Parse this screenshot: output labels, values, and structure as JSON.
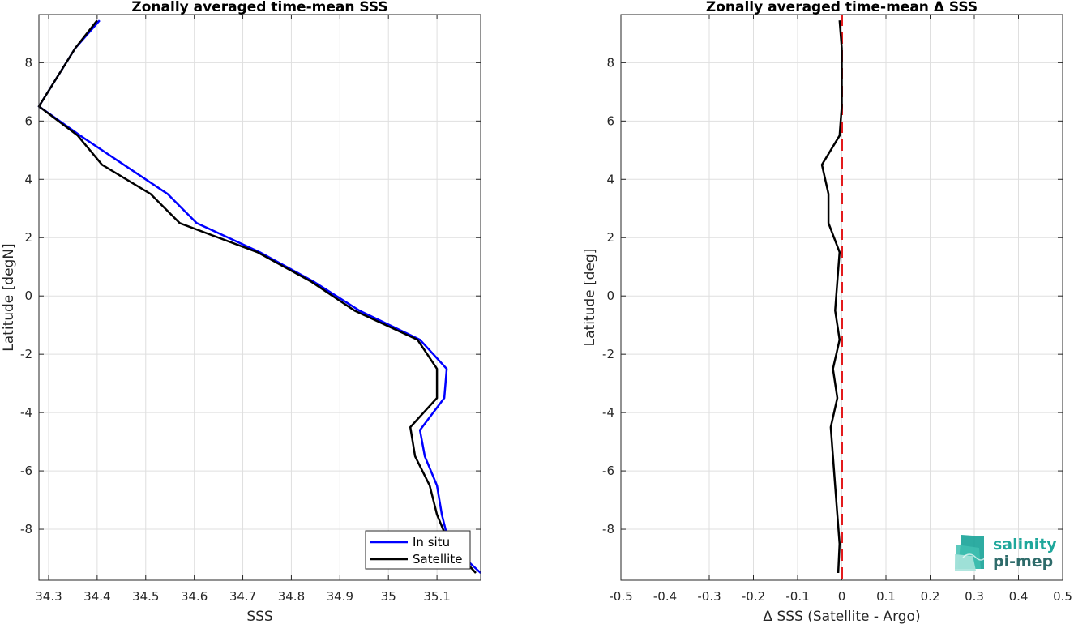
{
  "chart_data": [
    {
      "type": "line",
      "title": "Zonally averaged time-mean SSS",
      "xlabel": "SSS",
      "ylabel": "Latitude [degN]",
      "xlim": [
        34.28,
        35.19
      ],
      "ylim": [
        -9.75,
        9.65
      ],
      "xticks": [
        "34.3",
        "34.4",
        "34.5",
        "34.6",
        "34.7",
        "34.8",
        "34.9",
        "35",
        "35.1"
      ],
      "yticks": [
        "8",
        "6",
        "4",
        "2",
        "0",
        "-2",
        "-4",
        "-6",
        "-8"
      ],
      "grid": true,
      "legend": {
        "placement": "bottom-right",
        "entries": [
          "In situ",
          "Satellite"
        ]
      },
      "series": [
        {
          "name": "In situ",
          "color": "#0000ff",
          "points": [
            [
              34.405,
              9.45
            ],
            [
              34.355,
              8.5
            ],
            [
              34.28,
              6.5
            ],
            [
              34.365,
              5.5
            ],
            [
              34.455,
              4.5
            ],
            [
              34.545,
              3.5
            ],
            [
              34.605,
              2.5
            ],
            [
              34.735,
              1.5
            ],
            [
              34.845,
              0.5
            ],
            [
              34.94,
              -0.5
            ],
            [
              35.065,
              -1.5
            ],
            [
              35.12,
              -2.5
            ],
            [
              35.115,
              -3.5
            ],
            [
              35.065,
              -4.6
            ],
            [
              35.075,
              -5.5
            ],
            [
              35.1,
              -6.5
            ],
            [
              35.11,
              -7.5
            ],
            [
              35.125,
              -8.5
            ],
            [
              35.19,
              -9.5
            ]
          ]
        },
        {
          "name": "Satellite",
          "color": "#000000",
          "points": [
            [
              34.4,
              9.45
            ],
            [
              34.355,
              8.5
            ],
            [
              34.28,
              6.5
            ],
            [
              34.36,
              5.5
            ],
            [
              34.41,
              4.5
            ],
            [
              34.51,
              3.5
            ],
            [
              34.57,
              2.5
            ],
            [
              34.73,
              1.5
            ],
            [
              34.84,
              0.5
            ],
            [
              34.93,
              -0.5
            ],
            [
              35.06,
              -1.5
            ],
            [
              35.1,
              -2.5
            ],
            [
              35.1,
              -3.5
            ],
            [
              35.045,
              -4.5
            ],
            [
              35.055,
              -5.5
            ],
            [
              35.085,
              -6.5
            ],
            [
              35.1,
              -7.5
            ],
            [
              35.125,
              -8.5
            ],
            [
              35.18,
              -9.5
            ]
          ]
        }
      ]
    },
    {
      "type": "line",
      "title": "Zonally averaged time-mean Δ SSS",
      "xlabel": "Δ SSS (Satellite - Argo)",
      "ylabel": "Latitude [deg]",
      "xlim": [
        -0.5,
        0.5
      ],
      "ylim": [
        -9.75,
        9.65
      ],
      "xticks": [
        "-0.5",
        "-0.4",
        "-0.3",
        "-0.2",
        "-0.1",
        "0",
        "0.1",
        "0.2",
        "0.3",
        "0.4",
        "0.5"
      ],
      "yticks": [
        "8",
        "6",
        "4",
        "2",
        "0",
        "-2",
        "-4",
        "-6",
        "-8"
      ],
      "grid": true,
      "reference_line": {
        "x": 0,
        "color": "#e31a1c",
        "style": "dashed"
      },
      "series": [
        {
          "color": "#000000",
          "points": [
            [
              -0.005,
              9.45
            ],
            [
              0.0,
              8.5
            ],
            [
              0.0,
              7.5
            ],
            [
              0.0,
              6.5
            ],
            [
              -0.005,
              5.5
            ],
            [
              -0.045,
              4.5
            ],
            [
              -0.03,
              3.5
            ],
            [
              -0.03,
              2.5
            ],
            [
              -0.005,
              1.5
            ],
            [
              -0.01,
              0.5
            ],
            [
              -0.015,
              -0.5
            ],
            [
              -0.005,
              -1.5
            ],
            [
              -0.02,
              -2.5
            ],
            [
              -0.01,
              -3.5
            ],
            [
              -0.025,
              -4.5
            ],
            [
              -0.02,
              -5.5
            ],
            [
              -0.015,
              -6.5
            ],
            [
              -0.01,
              -7.5
            ],
            [
              -0.005,
              -8.5
            ],
            [
              -0.008,
              -9.5
            ]
          ]
        }
      ]
    }
  ],
  "logo": {
    "line1": "salinity",
    "line2": "pi-mep",
    "color1": "#1fa79b",
    "color2": "#2e6b6a"
  }
}
